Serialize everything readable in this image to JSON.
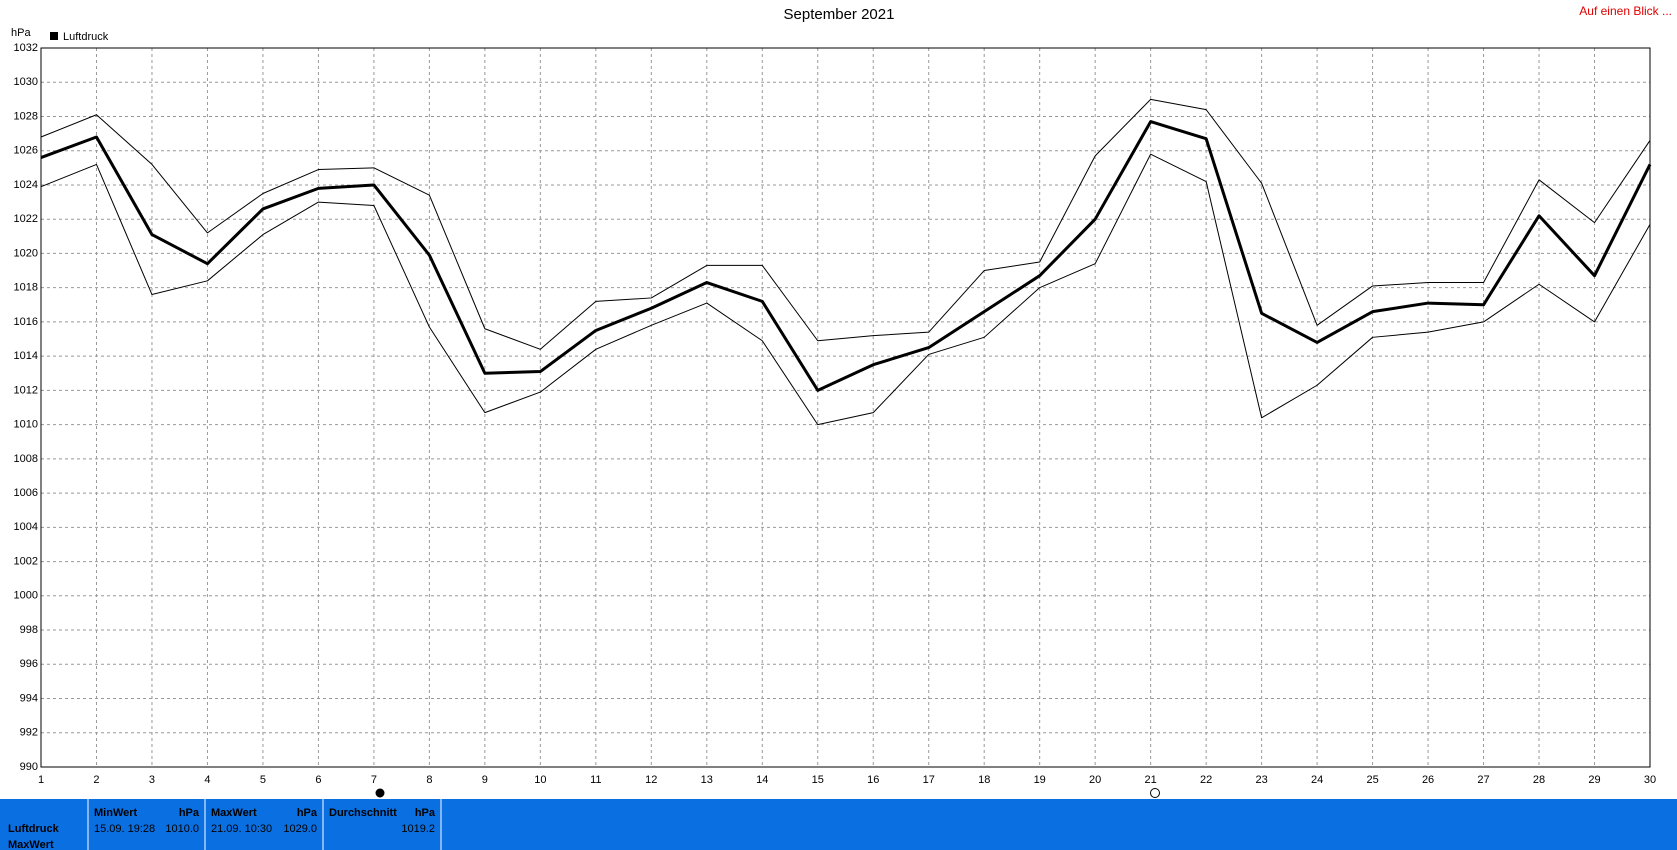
{
  "chart_data": {
    "type": "line",
    "title": "September 2021",
    "y_label": "hPa",
    "legend": "top-left",
    "grid": true,
    "x": [
      1,
      2,
      3,
      4,
      5,
      6,
      7,
      8,
      9,
      10,
      11,
      12,
      13,
      14,
      15,
      16,
      17,
      18,
      19,
      20,
      21,
      22,
      23,
      24,
      25,
      26,
      27,
      28,
      29,
      30
    ],
    "xlim": [
      1,
      30
    ],
    "xticks": [
      1,
      2,
      3,
      4,
      5,
      6,
      7,
      8,
      9,
      10,
      11,
      12,
      13,
      14,
      15,
      16,
      17,
      18,
      19,
      20,
      21,
      22,
      23,
      24,
      25,
      26,
      27,
      28,
      29,
      30
    ],
    "ylim": [
      990,
      1032
    ],
    "yticks": [
      990,
      992,
      994,
      996,
      998,
      1000,
      1002,
      1004,
      1006,
      1008,
      1010,
      1012,
      1014,
      1016,
      1018,
      1020,
      1022,
      1024,
      1026,
      1028,
      1030,
      1032
    ],
    "series": [
      {
        "name": "Luftdruck",
        "color": "#000000",
        "width": 3,
        "values": [
          1025.6,
          1026.8,
          1021.1,
          1019.4,
          1022.6,
          1023.8,
          1024.0,
          1019.9,
          1013.0,
          1013.1,
          1015.5,
          1016.8,
          1018.3,
          1017.2,
          1012.0,
          1013.5,
          1014.5,
          1016.6,
          1018.7,
          1022.0,
          1027.7,
          1026.7,
          1016.5,
          1014.8,
          1016.6,
          1017.1,
          1017.0,
          1022.2,
          1018.7,
          1025.2
        ]
      },
      {
        "color": "#000000",
        "width": 1,
        "values": [
          1026.8,
          1028.1,
          1025.2,
          1021.2,
          1023.5,
          1024.9,
          1025.0,
          1023.4,
          1015.6,
          1014.4,
          1017.2,
          1017.4,
          1019.3,
          1019.3,
          1014.9,
          1015.2,
          1015.4,
          1019.0,
          1019.5,
          1025.7,
          1029.0,
          1028.4,
          1024.1,
          1015.8,
          1018.1,
          1018.3,
          1018.3,
          1024.3,
          1021.8,
          1026.6
        ]
      },
      {
        "color": "#000000",
        "width": 1,
        "values": [
          1023.9,
          1025.2,
          1017.6,
          1018.4,
          1021.1,
          1023.0,
          1022.8,
          1015.7,
          1010.7,
          1011.9,
          1014.4,
          1015.8,
          1017.1,
          1014.9,
          1010.0,
          1010.7,
          1014.1,
          1015.1,
          1018.0,
          1019.4,
          1025.8,
          1024.2,
          1010.4,
          1012.3,
          1015.1,
          1015.4,
          1016.0,
          1018.2,
          1016.0,
          1021.7
        ]
      }
    ]
  },
  "header": {
    "link": "Auf einen Blick ..."
  },
  "summary": {
    "row_labels": [
      "Luftdruck",
      "MaxWert"
    ],
    "columns": [
      {
        "title": "MinWert",
        "unit": "hPa",
        "time": "15.09. 19:28",
        "value": "1010.0"
      },
      {
        "title": "MaxWert",
        "unit": "hPa",
        "time": "21.09. 10:30",
        "value": "1029.0"
      },
      {
        "title": "Durchschnitt",
        "unit": "hPa",
        "value": "1019.2"
      }
    ]
  }
}
